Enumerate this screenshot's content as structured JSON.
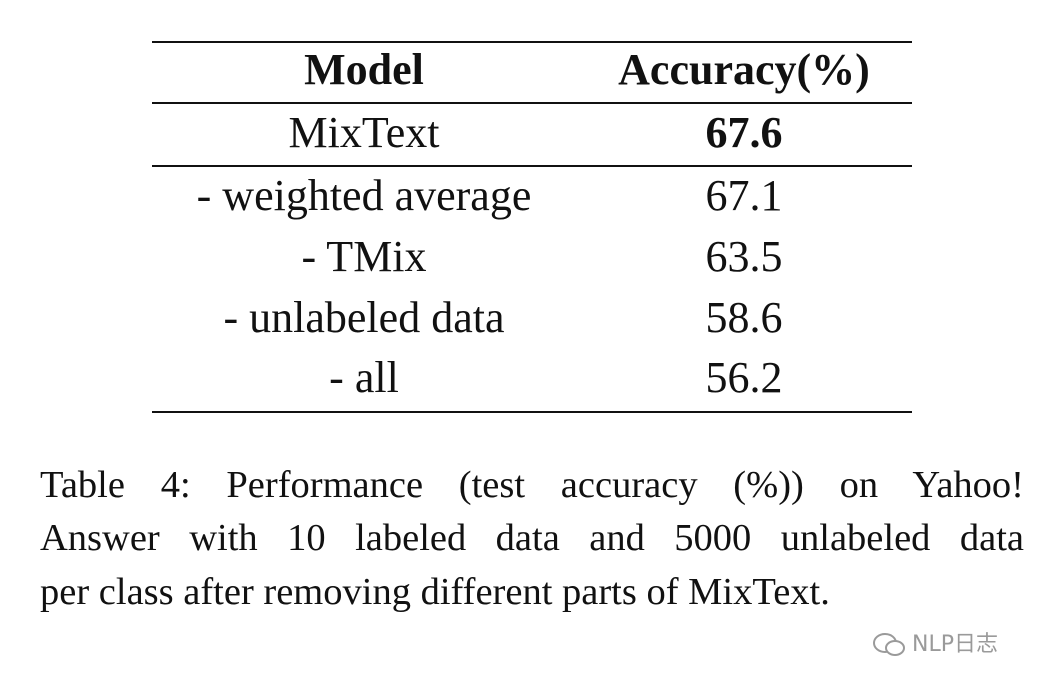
{
  "table": {
    "header": [
      "Model",
      "Accuracy(%)"
    ],
    "rows": [
      [
        "MixText",
        "67.6"
      ],
      [
        "- weighted average",
        "67.1"
      ],
      [
        "- TMix",
        "63.5"
      ],
      [
        "- unlabeled data",
        "58.6"
      ],
      [
        "- all",
        "56.2"
      ]
    ]
  },
  "caption": [
    "Table 4:  Performance (test accuracy (%)) on Yahoo!",
    "Answer with 10 labeled data and 5000 unlabeled data",
    "per class after removing different parts of MixText."
  ],
  "watermark": "NLP日志"
}
